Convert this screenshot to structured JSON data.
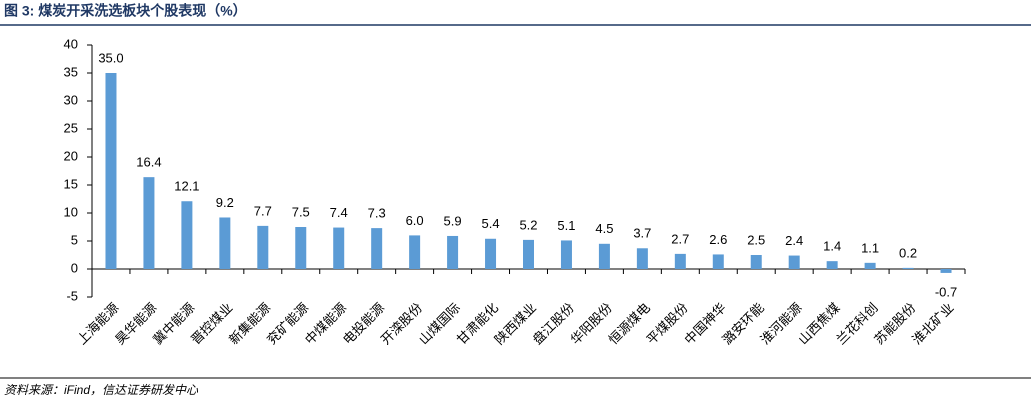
{
  "chart_data": {
    "type": "bar",
    "title": "图 3: 煤炭开采洗选板块个股表现（%）",
    "source": "资料来源：iFind，信达证券研发中心",
    "categories": [
      "上海能源",
      "昊华能源",
      "冀中能源",
      "晋控煤业",
      "新集能源",
      "兖矿能源",
      "中煤能源",
      "电投能源",
      "开滦股份",
      "山煤国际",
      "甘肃能化",
      "陕西煤业",
      "盘江股份",
      "华阳股份",
      "恒源煤电",
      "平煤股份",
      "中国神华",
      "潞安环能",
      "淮河能源",
      "山西焦煤",
      "兰花科创",
      "苏能股份",
      "淮北矿业"
    ],
    "values": [
      35.0,
      16.4,
      12.1,
      9.2,
      7.7,
      7.5,
      7.4,
      7.3,
      6.0,
      5.9,
      5.4,
      5.2,
      5.1,
      4.5,
      3.7,
      2.7,
      2.6,
      2.5,
      2.4,
      1.4,
      1.1,
      0.2,
      -0.7
    ],
    "value_labels": [
      "35.0",
      "16.4",
      "12.1",
      "9.2",
      "7.7",
      "7.5",
      "7.4",
      "7.3",
      "6.0",
      "5.9",
      "5.4",
      "5.2",
      "5.1",
      "4.5",
      "3.7",
      "2.7",
      "2.6",
      "2.5",
      "2.4",
      "1.4",
      "1.1",
      "0.2",
      "-0.7"
    ],
    "color": "#5b9bd5",
    "ylim": [
      -5,
      40
    ],
    "yticks": [
      -5,
      0,
      5,
      10,
      15,
      20,
      25,
      30,
      35,
      40
    ],
    "grid": false
  }
}
